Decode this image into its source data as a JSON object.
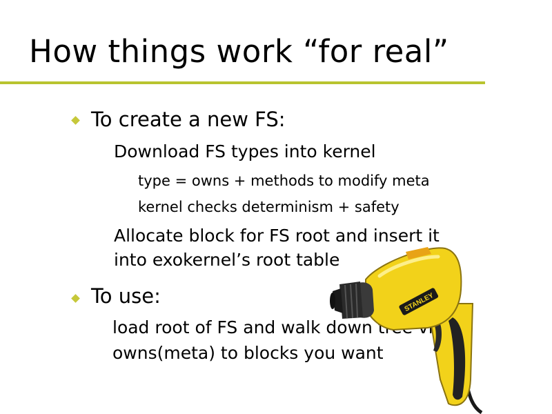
{
  "slide": {
    "title": "How things work “for real”",
    "accent_color": "#b8c42f",
    "bullet_color": "#c6c83a",
    "bullets": [
      {
        "text": "To create a new FS:",
        "sub": [
          {
            "text": "Download FS types into kernel",
            "sub": [
              "type = owns + methods to modify meta",
              "kernel checks determinism + safety"
            ]
          },
          {
            "text_line1": "Allocate block for FS root and insert it",
            "text_line2": "into exokernel’s root table"
          }
        ]
      },
      {
        "text": "To use:",
        "sub": [
          {
            "text_line1": "load root of FS and walk down tree via",
            "text_line2": "owns(meta) to blocks you want"
          }
        ]
      }
    ]
  },
  "image": {
    "name": "power-drill",
    "brand_text": "STANLEY",
    "body_color": "#f2d21a",
    "chuck_color": "#2a2a2a"
  }
}
